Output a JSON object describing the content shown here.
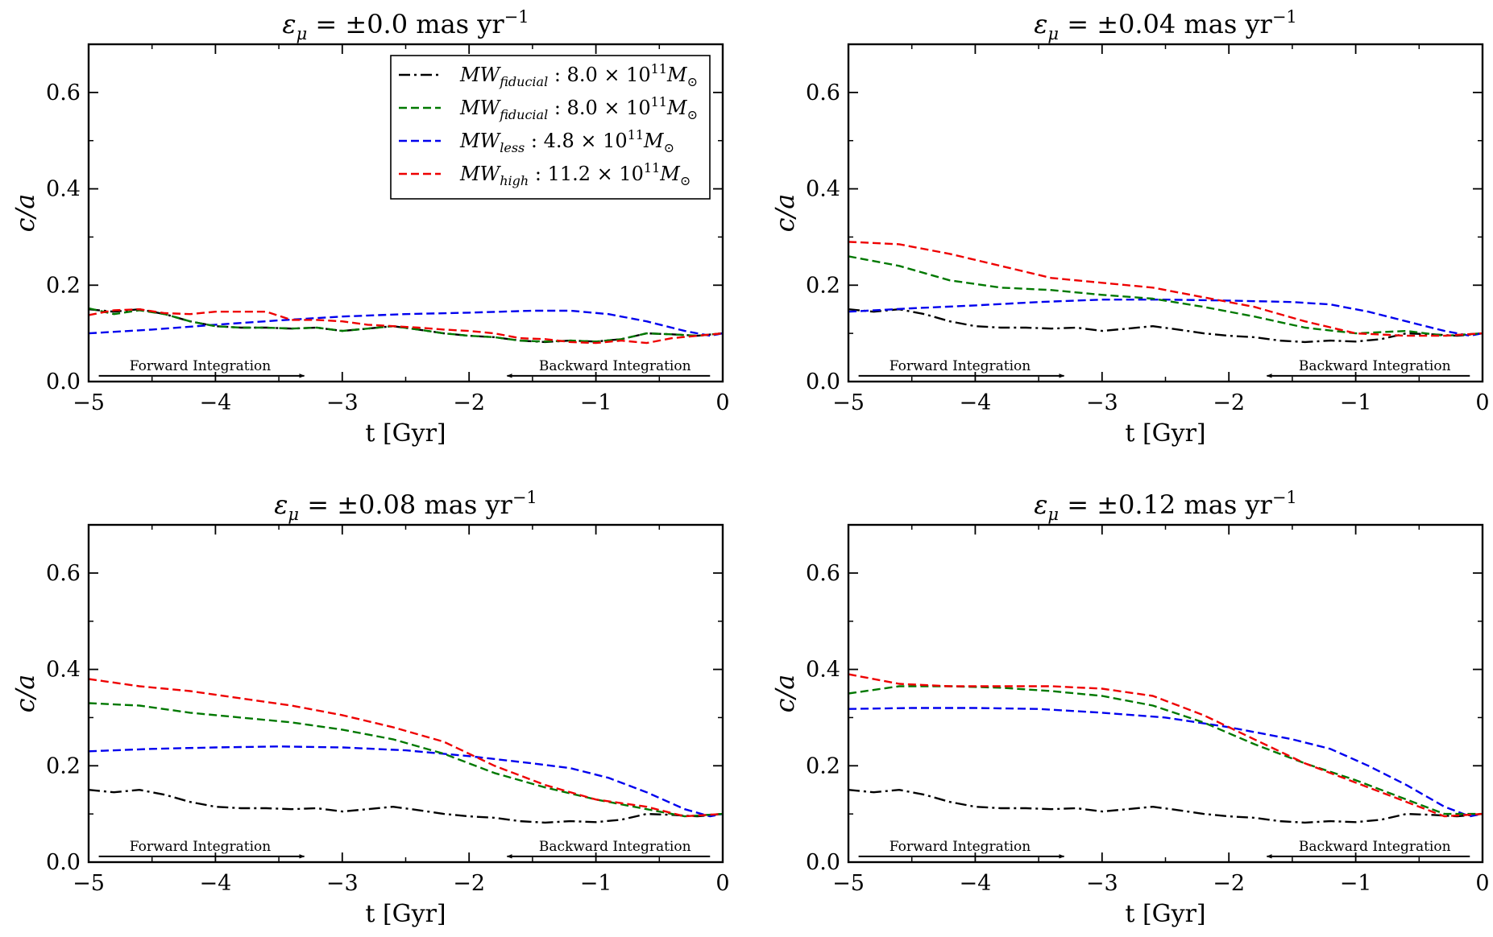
{
  "chart_data": [
    {
      "type": "line",
      "title": "ε",
      "title_sub": "μ",
      "title_rest": " = ±0.0 mas yr",
      "title_sup": "−1",
      "xlabel": "t [Gyr]",
      "ylabel": "c/a",
      "xlim": [
        -5,
        0
      ],
      "ylim": [
        0,
        0.7
      ],
      "xticks": [
        "−5",
        "−4",
        "−3",
        "−2",
        "−1",
        "0"
      ],
      "yticks": [
        "0.0",
        "0.2",
        "0.4",
        "0.6"
      ],
      "grid": false,
      "legend": "top-right",
      "annotations": {
        "forward": "Forward Integration",
        "backward": "Backward Integration"
      },
      "series": [
        {
          "key": "fid_dashdot",
          "x": [
            -5,
            -4.8,
            -4.6,
            -4.4,
            -4.2,
            -4.0,
            -3.8,
            -3.6,
            -3.4,
            -3.2,
            -3.0,
            -2.8,
            -2.6,
            -2.4,
            -2.2,
            -2.0,
            -1.8,
            -1.6,
            -1.4,
            -1.2,
            -1.0,
            -0.8,
            -0.6,
            -0.4,
            -0.2,
            0
          ],
          "y": [
            0.15,
            0.145,
            0.15,
            0.14,
            0.125,
            0.115,
            0.112,
            0.112,
            0.11,
            0.112,
            0.105,
            0.11,
            0.115,
            0.108,
            0.1,
            0.095,
            0.092,
            0.085,
            0.082,
            0.085,
            0.083,
            0.088,
            0.1,
            0.098,
            0.095,
            0.1
          ]
        },
        {
          "key": "fid_dashed",
          "x": [
            -5,
            -4.8,
            -4.6,
            -4.4,
            -4.2,
            -4.0,
            -3.8,
            -3.6,
            -3.4,
            -3.2,
            -3.0,
            -2.8,
            -2.6,
            -2.4,
            -2.2,
            -2.0,
            -1.8,
            -1.6,
            -1.4,
            -1.2,
            -1.0,
            -0.8,
            -0.6,
            -0.4,
            -0.2,
            0
          ],
          "y": [
            0.152,
            0.14,
            0.148,
            0.14,
            0.125,
            0.115,
            0.112,
            0.112,
            0.11,
            0.112,
            0.105,
            0.11,
            0.115,
            0.108,
            0.1,
            0.095,
            0.092,
            0.085,
            0.083,
            0.085,
            0.083,
            0.088,
            0.1,
            0.098,
            0.095,
            0.1
          ]
        },
        {
          "key": "less",
          "x": [
            -5,
            -4.5,
            -4.0,
            -3.5,
            -3.0,
            -2.5,
            -2.0,
            -1.5,
            -1.2,
            -0.9,
            -0.6,
            -0.3,
            -0.1,
            0
          ],
          "y": [
            0.1,
            0.108,
            0.118,
            0.127,
            0.135,
            0.14,
            0.143,
            0.147,
            0.147,
            0.14,
            0.125,
            0.105,
            0.095,
            0.1
          ]
        },
        {
          "key": "high",
          "x": [
            -5,
            -4.8,
            -4.6,
            -4.4,
            -4.2,
            -4.0,
            -3.8,
            -3.6,
            -3.4,
            -3.2,
            -3.0,
            -2.8,
            -2.6,
            -2.4,
            -2.2,
            -2.0,
            -1.8,
            -1.6,
            -1.4,
            -1.2,
            -1.0,
            -0.8,
            -0.6,
            -0.4,
            -0.2,
            0
          ],
          "y": [
            0.138,
            0.148,
            0.15,
            0.142,
            0.14,
            0.145,
            0.145,
            0.145,
            0.128,
            0.128,
            0.125,
            0.118,
            0.115,
            0.112,
            0.108,
            0.105,
            0.1,
            0.09,
            0.088,
            0.082,
            0.08,
            0.085,
            0.08,
            0.09,
            0.095,
            0.1
          ]
        }
      ]
    },
    {
      "type": "line",
      "title": "ε",
      "title_sub": "μ",
      "title_rest": " = ±0.04 mas yr",
      "title_sup": "−1",
      "xlabel": "t [Gyr]",
      "ylabel": "c/a",
      "xlim": [
        -5,
        0
      ],
      "ylim": [
        0,
        0.7
      ],
      "xticks": [
        "−5",
        "−4",
        "−3",
        "−2",
        "−1",
        "0"
      ],
      "yticks": [
        "0.0",
        "0.2",
        "0.4",
        "0.6"
      ],
      "grid": false,
      "annotations": {
        "forward": "Forward Integration",
        "backward": "Backward Integration"
      },
      "series": [
        {
          "key": "fid_dashdot",
          "x": [
            -5,
            -4.8,
            -4.6,
            -4.4,
            -4.2,
            -4.0,
            -3.8,
            -3.6,
            -3.4,
            -3.2,
            -3.0,
            -2.8,
            -2.6,
            -2.4,
            -2.2,
            -2.0,
            -1.8,
            -1.6,
            -1.4,
            -1.2,
            -1.0,
            -0.8,
            -0.6,
            -0.4,
            -0.2,
            0
          ],
          "y": [
            0.15,
            0.145,
            0.15,
            0.14,
            0.125,
            0.115,
            0.112,
            0.112,
            0.11,
            0.112,
            0.105,
            0.11,
            0.115,
            0.108,
            0.1,
            0.095,
            0.092,
            0.085,
            0.082,
            0.085,
            0.083,
            0.088,
            0.1,
            0.098,
            0.095,
            0.1
          ]
        },
        {
          "key": "fid_dashed",
          "x": [
            -5,
            -4.6,
            -4.2,
            -3.8,
            -3.4,
            -3.0,
            -2.6,
            -2.2,
            -1.8,
            -1.4,
            -1.0,
            -0.6,
            -0.3,
            0
          ],
          "y": [
            0.26,
            0.24,
            0.21,
            0.195,
            0.19,
            0.18,
            0.172,
            0.155,
            0.135,
            0.112,
            0.1,
            0.105,
            0.095,
            0.1
          ]
        },
        {
          "key": "less",
          "x": [
            -5,
            -4.5,
            -4.0,
            -3.5,
            -3.0,
            -2.5,
            -2.0,
            -1.5,
            -1.2,
            -0.9,
            -0.6,
            -0.3,
            -0.1,
            0
          ],
          "y": [
            0.145,
            0.152,
            0.158,
            0.165,
            0.17,
            0.17,
            0.168,
            0.165,
            0.16,
            0.145,
            0.125,
            0.105,
            0.095,
            0.1
          ]
        },
        {
          "key": "high",
          "x": [
            -5,
            -4.6,
            -4.2,
            -3.8,
            -3.4,
            -3.0,
            -2.6,
            -2.2,
            -1.8,
            -1.4,
            -1.0,
            -0.6,
            -0.3,
            0
          ],
          "y": [
            0.29,
            0.285,
            0.265,
            0.24,
            0.215,
            0.205,
            0.195,
            0.175,
            0.155,
            0.125,
            0.1,
            0.095,
            0.095,
            0.1
          ]
        }
      ]
    },
    {
      "type": "line",
      "title": "ε",
      "title_sub": "μ",
      "title_rest": " = ±0.08 mas yr",
      "title_sup": "−1",
      "xlabel": "t [Gyr]",
      "ylabel": "c/a",
      "xlim": [
        -5,
        0
      ],
      "ylim": [
        0,
        0.7
      ],
      "xticks": [
        "−5",
        "−4",
        "−3",
        "−2",
        "−1",
        "0"
      ],
      "yticks": [
        "0.0",
        "0.2",
        "0.4",
        "0.6"
      ],
      "grid": false,
      "annotations": {
        "forward": "Forward Integration",
        "backward": "Backward Integration"
      },
      "series": [
        {
          "key": "fid_dashdot",
          "x": [
            -5,
            -4.8,
            -4.6,
            -4.4,
            -4.2,
            -4.0,
            -3.8,
            -3.6,
            -3.4,
            -3.2,
            -3.0,
            -2.8,
            -2.6,
            -2.4,
            -2.2,
            -2.0,
            -1.8,
            -1.6,
            -1.4,
            -1.2,
            -1.0,
            -0.8,
            -0.6,
            -0.4,
            -0.2,
            0
          ],
          "y": [
            0.15,
            0.145,
            0.15,
            0.14,
            0.125,
            0.115,
            0.112,
            0.112,
            0.11,
            0.112,
            0.105,
            0.11,
            0.115,
            0.108,
            0.1,
            0.095,
            0.092,
            0.085,
            0.082,
            0.085,
            0.083,
            0.088,
            0.1,
            0.098,
            0.095,
            0.1
          ]
        },
        {
          "key": "fid_dashed",
          "x": [
            -5,
            -4.6,
            -4.2,
            -3.8,
            -3.4,
            -3.0,
            -2.6,
            -2.2,
            -1.8,
            -1.4,
            -1.0,
            -0.6,
            -0.3,
            0
          ],
          "y": [
            0.33,
            0.325,
            0.31,
            0.3,
            0.29,
            0.275,
            0.255,
            0.225,
            0.185,
            0.155,
            0.13,
            0.11,
            0.095,
            0.1
          ]
        },
        {
          "key": "less",
          "x": [
            -5,
            -4.5,
            -4.0,
            -3.5,
            -3.0,
            -2.5,
            -2.0,
            -1.5,
            -1.2,
            -0.9,
            -0.6,
            -0.3,
            -0.1,
            0
          ],
          "y": [
            0.23,
            0.235,
            0.238,
            0.24,
            0.238,
            0.232,
            0.22,
            0.205,
            0.195,
            0.175,
            0.145,
            0.11,
            0.095,
            0.1
          ]
        },
        {
          "key": "high",
          "x": [
            -5,
            -4.6,
            -4.2,
            -3.8,
            -3.4,
            -3.0,
            -2.6,
            -2.2,
            -1.8,
            -1.4,
            -1.0,
            -0.6,
            -0.3,
            0
          ],
          "y": [
            0.38,
            0.365,
            0.355,
            0.34,
            0.325,
            0.305,
            0.28,
            0.25,
            0.2,
            0.16,
            0.13,
            0.115,
            0.095,
            0.1
          ]
        }
      ]
    },
    {
      "type": "line",
      "title": "ε",
      "title_sub": "μ",
      "title_rest": " = ±0.12 mas yr",
      "title_sup": "−1",
      "xlabel": "t [Gyr]",
      "ylabel": "c/a",
      "xlim": [
        -5,
        0
      ],
      "ylim": [
        0,
        0.7
      ],
      "xticks": [
        "−5",
        "−4",
        "−3",
        "−2",
        "−1",
        "0"
      ],
      "yticks": [
        "0.0",
        "0.2",
        "0.4",
        "0.6"
      ],
      "grid": false,
      "annotations": {
        "forward": "Forward Integration",
        "backward": "Backward Integration"
      },
      "series": [
        {
          "key": "fid_dashdot",
          "x": [
            -5,
            -4.8,
            -4.6,
            -4.4,
            -4.2,
            -4.0,
            -3.8,
            -3.6,
            -3.4,
            -3.2,
            -3.0,
            -2.8,
            -2.6,
            -2.4,
            -2.2,
            -2.0,
            -1.8,
            -1.6,
            -1.4,
            -1.2,
            -1.0,
            -0.8,
            -0.6,
            -0.4,
            -0.2,
            0
          ],
          "y": [
            0.15,
            0.145,
            0.15,
            0.14,
            0.125,
            0.115,
            0.112,
            0.112,
            0.11,
            0.112,
            0.105,
            0.11,
            0.115,
            0.108,
            0.1,
            0.095,
            0.092,
            0.085,
            0.082,
            0.085,
            0.083,
            0.088,
            0.1,
            0.098,
            0.095,
            0.1
          ]
        },
        {
          "key": "fid_dashed",
          "x": [
            -5,
            -4.6,
            -4.2,
            -3.8,
            -3.4,
            -3.0,
            -2.6,
            -2.2,
            -1.8,
            -1.4,
            -1.0,
            -0.6,
            -0.3,
            0
          ],
          "y": [
            0.35,
            0.365,
            0.365,
            0.362,
            0.355,
            0.345,
            0.325,
            0.29,
            0.245,
            0.205,
            0.17,
            0.13,
            0.1,
            0.1
          ]
        },
        {
          "key": "less",
          "x": [
            -5,
            -4.5,
            -4.0,
            -3.5,
            -3.0,
            -2.5,
            -2.0,
            -1.5,
            -1.2,
            -0.9,
            -0.6,
            -0.3,
            -0.1,
            0
          ],
          "y": [
            0.318,
            0.32,
            0.32,
            0.318,
            0.31,
            0.3,
            0.28,
            0.255,
            0.235,
            0.2,
            0.16,
            0.115,
            0.095,
            0.1
          ]
        },
        {
          "key": "high",
          "x": [
            -5,
            -4.6,
            -4.2,
            -3.8,
            -3.4,
            -3.0,
            -2.6,
            -2.2,
            -1.8,
            -1.4,
            -1.0,
            -0.6,
            -0.3,
            0
          ],
          "y": [
            0.39,
            0.37,
            0.365,
            0.365,
            0.365,
            0.36,
            0.345,
            0.305,
            0.255,
            0.205,
            0.165,
            0.125,
            0.095,
            0.1
          ]
        }
      ]
    }
  ],
  "legend": [
    {
      "key": "fid_dashdot",
      "name": "MW",
      "sub": "fiducial",
      "mass": " : 8.0 × 10",
      "exp": "11",
      "unit": "M",
      "unit_sub": "⊙",
      "color": "#000000",
      "dash": "14 5 3 5"
    },
    {
      "key": "fid_dashed",
      "name": "MW",
      "sub": "fiducial",
      "mass": " : 8.0 × 10",
      "exp": "11",
      "unit": "M",
      "unit_sub": "⊙",
      "color": "#007800",
      "dash": "10 5"
    },
    {
      "key": "less",
      "name": "MW",
      "sub": "less",
      "mass": " : 4.8 × 10",
      "exp": "11",
      "unit": "M",
      "unit_sub": "⊙",
      "color": "#0000ee",
      "dash": "10 5"
    },
    {
      "key": "high",
      "name": "MW",
      "sub": "high",
      "mass": " : 11.2 × 10",
      "exp": "11",
      "unit": "M",
      "unit_sub": "⊙",
      "color": "#ee0000",
      "dash": "10 5"
    }
  ]
}
